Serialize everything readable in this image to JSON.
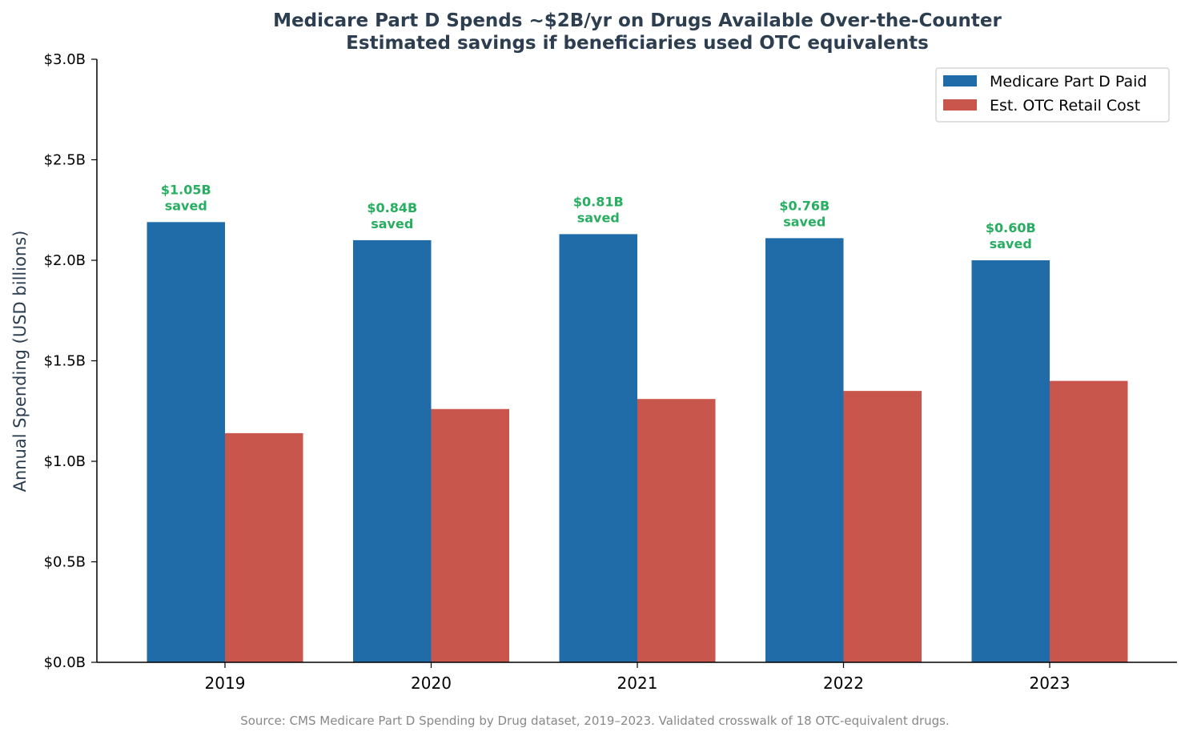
{
  "chart_data": {
    "type": "bar",
    "title": "Medicare Part D Spends ~$2B/yr on Drugs Available Over-the-Counter",
    "subtitle": "Estimated savings if beneficiaries used OTC equivalents",
    "ylabel": "Annual Spending (USD billions)",
    "xlabel": "",
    "categories": [
      "2019",
      "2020",
      "2021",
      "2022",
      "2023"
    ],
    "ylim": [
      0,
      3.0
    ],
    "yticks": [
      0,
      0.5,
      1.0,
      1.5,
      2.0,
      2.5,
      3.0
    ],
    "ytick_labels": [
      "$0.0B",
      "$0.5B",
      "$1.0B",
      "$1.5B",
      "$2.0B",
      "$2.5B",
      "$3.0B"
    ],
    "series": [
      {
        "name": "Medicare Part D Paid",
        "color": "#1f6ca8",
        "values": [
          2.19,
          2.1,
          2.13,
          2.11,
          2.0
        ]
      },
      {
        "name": "Est. OTC Retail Cost",
        "color": "#c8564c",
        "values": [
          1.14,
          1.26,
          1.31,
          1.35,
          1.4
        ]
      }
    ],
    "annotations": [
      {
        "line1": "$1.05B",
        "line2": "saved"
      },
      {
        "line1": "$0.84B",
        "line2": "saved"
      },
      {
        "line1": "$0.81B",
        "line2": "saved"
      },
      {
        "line1": "$0.76B",
        "line2": "saved"
      },
      {
        "line1": "$0.60B",
        "line2": "saved"
      }
    ],
    "annotation_color": "#27ae60",
    "legend_position": "top-right",
    "grid": false,
    "source": "Source: CMS Medicare Part D Spending by Drug dataset, 2019–2023. Validated crosswalk of 18 OTC-equivalent drugs."
  }
}
